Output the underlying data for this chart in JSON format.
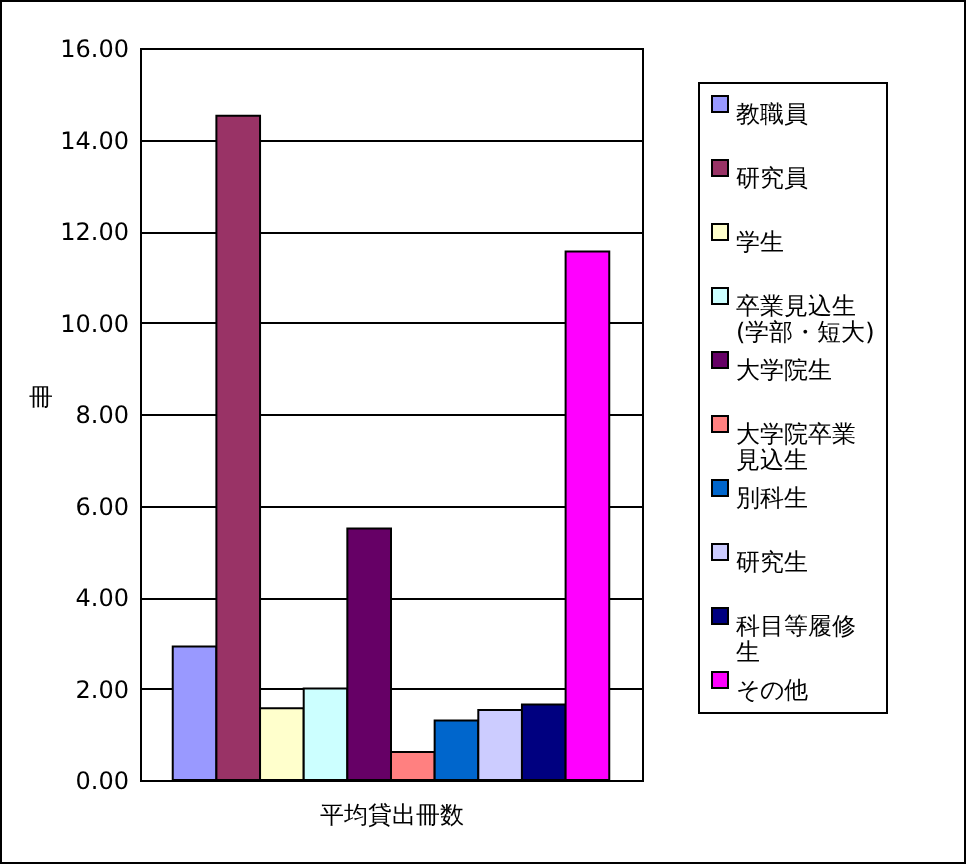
{
  "chart_data": {
    "type": "bar",
    "categories": [
      null
    ],
    "xlabel": "平均貸出冊数",
    "ylabel": "冊",
    "series": [
      {
        "name": "教職員",
        "color": "#9999ff",
        "values": [
          2.92
        ]
      },
      {
        "name": "研究員",
        "color": "#993366",
        "values": [
          14.52
        ]
      },
      {
        "name": "学生",
        "color": "#ffffcc",
        "values": [
          1.57
        ]
      },
      {
        "name": "卒業見込生(学部・短大)",
        "color": "#ccffff",
        "values": [
          2.0
        ]
      },
      {
        "name": "大学院生",
        "color": "#660066",
        "values": [
          5.5
        ]
      },
      {
        "name": "大学院卒業見込生",
        "color": "#ff8080",
        "values": [
          0.61
        ]
      },
      {
        "name": "別科生",
        "color": "#0066cc",
        "values": [
          1.3
        ]
      },
      {
        "name": "研究生",
        "color": "#ccccff",
        "values": [
          1.53
        ]
      },
      {
        "name": "科目等履修生",
        "color": "#000080",
        "values": [
          1.65
        ]
      },
      {
        "name": "その他",
        "color": "#ff00ff",
        "values": [
          11.55
        ]
      }
    ],
    "ylim": [
      0,
      16
    ],
    "yticks": [
      {
        "value": 0,
        "label": "0.00"
      },
      {
        "value": 2,
        "label": "2.00"
      },
      {
        "value": 4,
        "label": "4.00"
      },
      {
        "value": 6,
        "label": "6.00"
      },
      {
        "value": 8,
        "label": "8.00"
      },
      {
        "value": 10,
        "label": "10.00"
      },
      {
        "value": 12,
        "label": "12.00"
      },
      {
        "value": 14,
        "label": "14.00"
      },
      {
        "value": 16,
        "label": "16.00"
      }
    ],
    "grid": "y",
    "legend": "right"
  }
}
